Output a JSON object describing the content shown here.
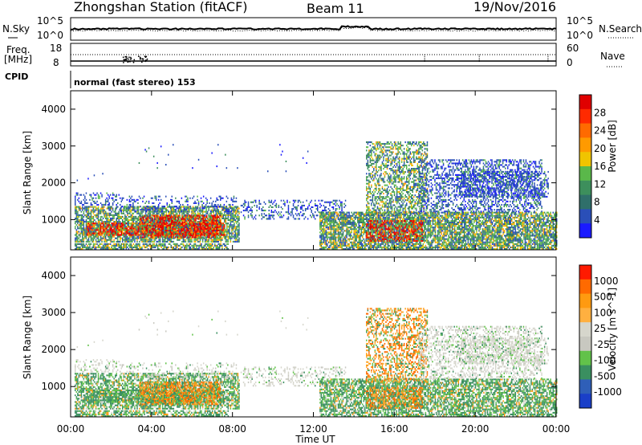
{
  "header": {
    "station": "Zhongshan Station (fitACF)",
    "beam": "Beam 11",
    "date": "19/Nov/2016"
  },
  "noise_panel": {
    "left_label": "N.Sky",
    "right_label": "N.Search",
    "left_ticks": [
      "10^5",
      "10^0"
    ],
    "right_ticks": [
      "10^5",
      "10^0"
    ]
  },
  "freq_panel": {
    "left_label_1": "Freq.",
    "left_label_2": "[MHz]",
    "right_label": "Nave",
    "left_ticks": [
      "18",
      "8"
    ],
    "right_ticks": [
      "60",
      "0"
    ]
  },
  "cpid": {
    "label": "CPID",
    "text": "normal (fast stereo) 153"
  },
  "colors": {
    "power": [
      "#1a1aff",
      "#2a4fb8",
      "#2f6f6a",
      "#3d8f5c",
      "#5ab84a",
      "#f0c400",
      "#ff9a00",
      "#ff6a00",
      "#ff2a00",
      "#e00000"
    ],
    "velocity": [
      "#ff1a00",
      "#ff6a00",
      "#ff9a10",
      "#ffb040",
      "#d6d6cc",
      "#c8c8c0",
      "#62c24a",
      "#3a8f60",
      "#2f5fb8",
      "#1a3fc8"
    ]
  },
  "chart_data": [
    {
      "type": "heatmap",
      "name": "power",
      "xlabel": "",
      "ylabel": "Slant Range [km]",
      "xlim": [
        0,
        24
      ],
      "ylim": [
        180,
        4500
      ],
      "yticks": [
        1000,
        2000,
        3000,
        4000
      ],
      "colorbar": {
        "label": "Power [dB]",
        "ticks": [
          "28",
          "24",
          "20",
          "16",
          "12",
          "8",
          "4"
        ]
      }
    },
    {
      "type": "heatmap",
      "name": "velocity",
      "xlabel": "Time UT",
      "ylabel": "Slant Range [km]",
      "xlim": [
        0,
        24
      ],
      "ylim": [
        180,
        4500
      ],
      "xticks": [
        "00:00",
        "04:00",
        "08:00",
        "12:00",
        "16:00",
        "20:00",
        "00:00"
      ],
      "yticks": [
        1000,
        2000,
        3000,
        4000
      ],
      "colorbar": {
        "label": "Velocity [m s^-1]",
        "ticks": [
          "1000",
          "500",
          "100",
          "25",
          "-25",
          "-100",
          "-500",
          "-1000"
        ]
      }
    }
  ]
}
